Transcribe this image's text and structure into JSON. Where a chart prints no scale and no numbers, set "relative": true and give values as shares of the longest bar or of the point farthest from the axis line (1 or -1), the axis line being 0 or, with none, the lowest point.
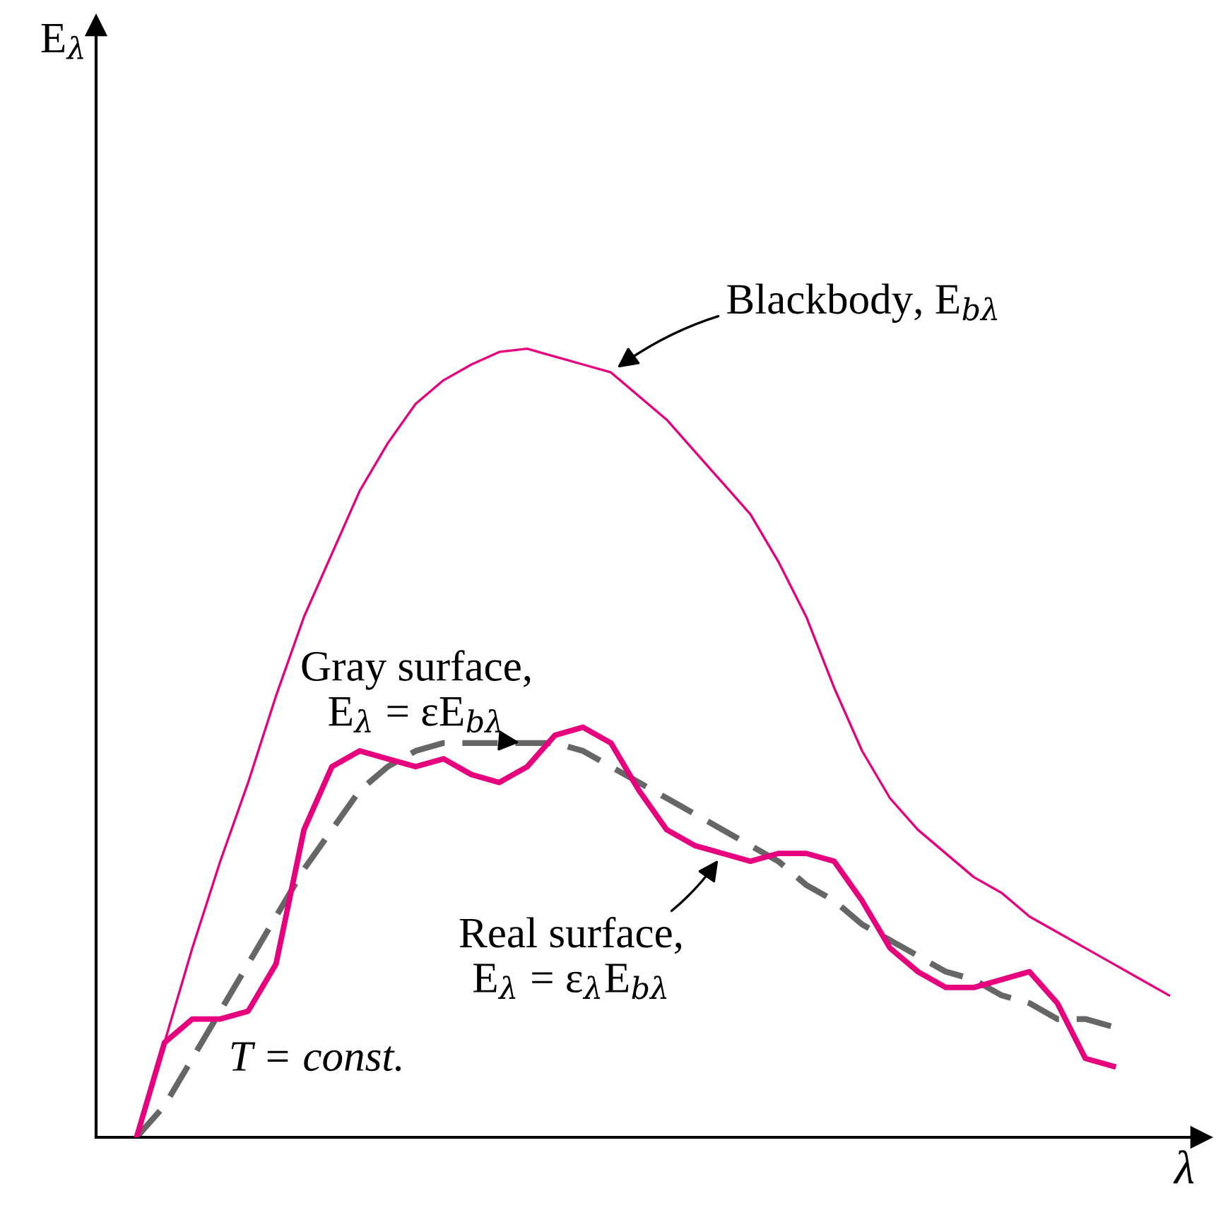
{
  "chart_data": {
    "type": "line",
    "relative": true,
    "xlabel": "λ",
    "categories": [
      null,
      null,
      null,
      null,
      null,
      null,
      null,
      null,
      null,
      null,
      null,
      null,
      null,
      null,
      null,
      null,
      null,
      null,
      null,
      null,
      null,
      null,
      null,
      null,
      null,
      null,
      null,
      null,
      null,
      null,
      null,
      null,
      null,
      null,
      null,
      null,
      null,
      null
    ],
    "series": [
      {
        "name": "Blackbody, E$_{bλ}$",
        "color": "#e6007e",
        "values": [
          0,
          0.12,
          0.24,
          0.35,
          0.45,
          0.56,
          0.66,
          0.74,
          0.82,
          0.88,
          0.93,
          0.96,
          0.98,
          0.996,
          1.0,
          0.99,
          0.98,
          0.97,
          0.94,
          0.91,
          0.87,
          0.83,
          0.79,
          0.73,
          0.66,
          0.57,
          0.49,
          0.43,
          0.39,
          0.36,
          0.33,
          0.31,
          0.28,
          0.26,
          0.24,
          0.22,
          0.2,
          0.18
        ]
      },
      {
        "name": "Gray surface,\nE$_{λ}$ = εE$_{bλ}$",
        "color": "#666666",
        "line_style": "dashed",
        "values": [
          0,
          0.04,
          0.1,
          0.16,
          0.22,
          0.28,
          0.34,
          0.39,
          0.44,
          0.47,
          0.49,
          0.5,
          0.5,
          0.5,
          0.5,
          0.5,
          0.49,
          0.47,
          0.45,
          0.43,
          0.41,
          0.39,
          0.37,
          0.35,
          0.32,
          0.3,
          0.27,
          0.25,
          0.23,
          0.21,
          0.2,
          0.18,
          0.17,
          0.15,
          0.15,
          0.14,
          null,
          null
        ]
      },
      {
        "name": "Real surface,\nE$_{λ}$ = ε$_{λ}$E$_{bλ}$",
        "color": "#e6007e",
        "values": [
          0,
          0.12,
          0.15,
          0.15,
          0.16,
          0.22,
          0.39,
          0.47,
          0.49,
          0.48,
          0.47,
          0.48,
          0.46,
          0.45,
          0.47,
          0.51,
          0.52,
          0.5,
          0.44,
          0.39,
          0.37,
          0.36,
          0.35,
          0.36,
          0.36,
          0.35,
          0.3,
          0.24,
          0.21,
          0.19,
          0.19,
          0.2,
          0.21,
          0.17,
          0.1,
          0.09,
          null,
          null
        ]
      }
    ],
    "annotations": [
      "T = const.",
      "E$_{λ}$"
    ],
    "grid": false,
    "legend": false
  }
}
